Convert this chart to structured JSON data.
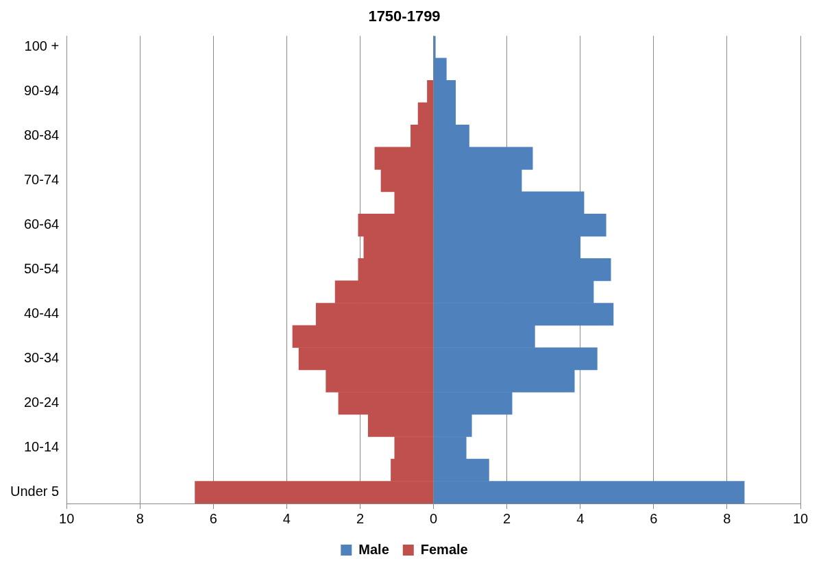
{
  "chart_data": {
    "type": "bar",
    "title": "1750-1799",
    "orientation": "horizontal",
    "stacked": true,
    "grid": "x",
    "legend": "bottom",
    "categories": [
      "100 +",
      null,
      "90-94",
      null,
      "80-84",
      null,
      "70-74",
      null,
      "60-64",
      null,
      "50-54",
      null,
      "40-44",
      null,
      "30-34",
      null,
      "20-24",
      null,
      "10-14",
      null,
      "Under 5"
    ],
    "series": [
      {
        "name": "Male",
        "color": "#4f81bd",
        "values": [
          0.05,
          0.35,
          0.6,
          0.6,
          0.97,
          2.7,
          2.4,
          4.1,
          4.7,
          4.0,
          4.83,
          4.36,
          4.9,
          2.76,
          4.46,
          3.84,
          2.14,
          1.04,
          0.89,
          1.51,
          8.47
        ]
      },
      {
        "name": "Female",
        "color": "#c0504d",
        "values": [
          null,
          null,
          -0.17,
          -0.42,
          -0.62,
          -1.6,
          -1.43,
          -1.06,
          -2.05,
          -1.9,
          -2.05,
          -2.68,
          -3.2,
          -3.84,
          -3.67,
          -2.93,
          -2.59,
          -1.78,
          -1.06,
          -1.16,
          -6.5
        ]
      }
    ],
    "xlim": [
      -10,
      10
    ],
    "xticks": [
      {
        "value": -10,
        "label": "10"
      },
      {
        "value": -8,
        "label": "8"
      },
      {
        "value": -6,
        "label": "6"
      },
      {
        "value": -4,
        "label": "4"
      },
      {
        "value": -2,
        "label": "2"
      },
      0,
      2,
      4,
      6,
      8,
      10
    ]
  }
}
